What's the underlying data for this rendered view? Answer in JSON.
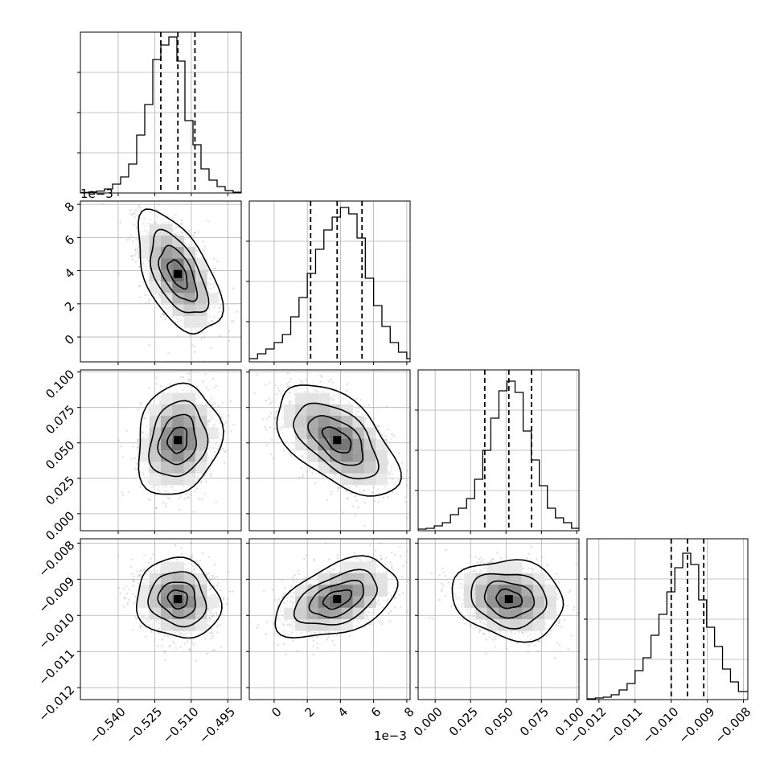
{
  "chart_data": {
    "type": "corner",
    "grid": true,
    "parameters": [
      {
        "range": [
          -0.5555,
          -0.4895
        ],
        "ticks": [
          -0.54,
          -0.525,
          -0.51,
          -0.495
        ],
        "tick_labels": [
          "−0.540",
          "−0.525",
          "−0.510",
          "−0.495"
        ],
        "offset_label": ""
      },
      {
        "range": [
          -0.0015,
          0.0082
        ],
        "ticks": [
          0,
          0.002,
          0.004,
          0.006,
          0.008
        ],
        "tick_labels": [
          "0",
          "2",
          "4",
          "6",
          "8"
        ],
        "offset_label": "1e−3"
      },
      {
        "range": [
          -0.012,
          0.1015
        ],
        "ticks": [
          0.0,
          0.025,
          0.05,
          0.075,
          0.1
        ],
        "tick_labels": [
          "0.000",
          "0.025",
          "0.050",
          "0.075",
          "0.100"
        ],
        "offset_label": ""
      },
      {
        "range": [
          -0.01233,
          -0.00788
        ],
        "ticks": [
          -0.012,
          -0.011,
          -0.01,
          -0.009,
          -0.008
        ],
        "tick_labels": [
          "−0.012",
          "−0.011",
          "−0.010",
          "−0.009",
          "−0.008"
        ],
        "offset_label": ""
      }
    ],
    "marginals": [
      {
        "mean": -0.5155,
        "sigma": 0.007,
        "quantiles": [
          -0.5225,
          -0.5155,
          -0.5085
        ],
        "bin_edges": [
          -0.5555,
          -0.5522,
          -0.5489,
          -0.5456,
          -0.5423,
          -0.539,
          -0.5357,
          -0.5324,
          -0.5291,
          -0.5258,
          -0.5225,
          -0.5192,
          -0.5159,
          -0.5126,
          -0.5093,
          -0.506,
          -0.5027,
          -0.4994,
          -0.4961,
          -0.4928,
          -0.4895
        ],
        "counts": [
          0.003,
          0.006,
          0.012,
          0.025,
          0.055,
          0.1,
          0.18,
          0.36,
          0.55,
          0.83,
          0.92,
          0.97,
          0.82,
          0.45,
          0.3,
          0.15,
          0.08,
          0.04,
          0.015,
          0.005
        ]
      },
      {
        "mean": 0.0038,
        "sigma": 0.0015,
        "quantiles": [
          0.0022,
          0.0038,
          0.0053
        ],
        "bin_edges": [
          -0.0015,
          -0.001,
          -0.0005,
          0.0,
          0.0005,
          0.001,
          0.0015,
          0.002,
          0.0025,
          0.003,
          0.0035,
          0.004,
          0.0045,
          0.005,
          0.0055,
          0.006,
          0.0065,
          0.007,
          0.0075,
          0.008,
          0.0082
        ],
        "counts": [
          0.02,
          0.05,
          0.08,
          0.12,
          0.17,
          0.28,
          0.4,
          0.55,
          0.7,
          0.82,
          0.9,
          0.96,
          0.92,
          0.77,
          0.52,
          0.35,
          0.22,
          0.12,
          0.06,
          0.02
        ]
      },
      {
        "mean": 0.052,
        "sigma": 0.016,
        "quantiles": [
          0.035,
          0.052,
          0.068
        ],
        "bin_edges": [
          -0.012,
          -0.0063,
          -0.0006,
          0.0051,
          0.0108,
          0.0165,
          0.0222,
          0.0279,
          0.0336,
          0.0393,
          0.045,
          0.0507,
          0.0564,
          0.0621,
          0.0678,
          0.0735,
          0.0792,
          0.0849,
          0.0906,
          0.0963,
          0.1015
        ],
        "counts": [
          0.01,
          0.015,
          0.03,
          0.05,
          0.1,
          0.14,
          0.2,
          0.32,
          0.5,
          0.7,
          0.87,
          0.93,
          0.86,
          0.62,
          0.44,
          0.28,
          0.14,
          0.08,
          0.05,
          0.015
        ]
      },
      {
        "mean": -0.00955,
        "sigma": 0.00045,
        "quantiles": [
          -0.01,
          -0.00955,
          -0.0091
        ],
        "bin_edges": [
          -0.01233,
          -0.0121,
          -0.01188,
          -0.01166,
          -0.01144,
          -0.01122,
          -0.011,
          -0.01078,
          -0.01056,
          -0.01034,
          -0.01012,
          -0.0099,
          -0.00968,
          -0.00946,
          -0.00924,
          -0.00902,
          -0.0088,
          -0.00858,
          -0.00836,
          -0.00814,
          -0.00788
        ],
        "counts": [
          0.005,
          0.01,
          0.015,
          0.03,
          0.06,
          0.1,
          0.18,
          0.26,
          0.4,
          0.53,
          0.67,
          0.82,
          0.91,
          0.84,
          0.62,
          0.45,
          0.33,
          0.19,
          0.11,
          0.05
        ]
      }
    ],
    "correlations": {
      "1-0": -0.55,
      "2-0": 0.15,
      "2-1": -0.55,
      "3-0": -0.1,
      "3-1": 0.45,
      "3-2": -0.15
    }
  }
}
